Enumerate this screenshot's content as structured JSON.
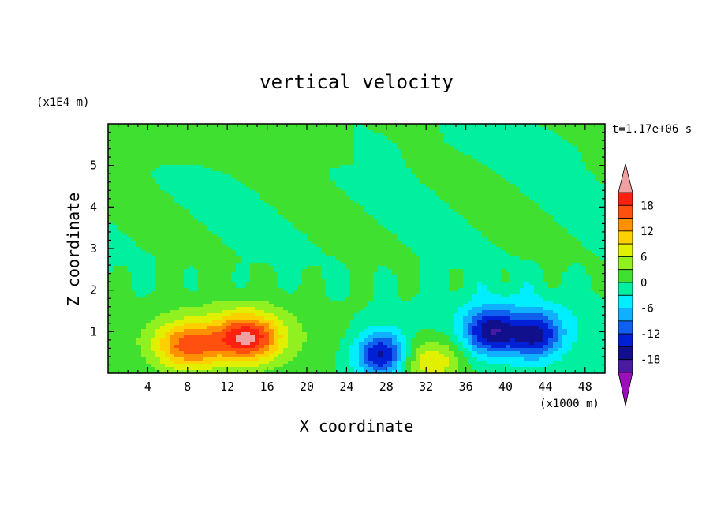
{
  "chart_data": {
    "type": "heatmap",
    "subtype": "filled-contour",
    "title": "vertical velocity",
    "xlabel": "X coordinate",
    "ylabel": "Z coordinate",
    "x_unit": "(x1000 m)",
    "y_unit": "(x1E4 m)",
    "time_label": "t=1.17e+06 s",
    "xlim": [
      0,
      50
    ],
    "ylim": [
      0,
      6
    ],
    "x_ticks": [
      4,
      8,
      12,
      16,
      20,
      24,
      28,
      32,
      36,
      40,
      44,
      48
    ],
    "y_ticks": [
      1,
      2,
      3,
      4,
      5
    ],
    "grid": false,
    "colorbar": {
      "placement": "right",
      "levels": [
        -21,
        -18,
        -15,
        -12,
        -9,
        -6,
        -3,
        0,
        3,
        6,
        9,
        12,
        15,
        18,
        21
      ],
      "tick_labels": [
        "18",
        "12",
        "6",
        "0",
        "-6",
        "-12",
        "-18"
      ],
      "tick_values": [
        18,
        12,
        6,
        0,
        -6,
        -12,
        -18
      ],
      "colors": [
        "#9b10b8",
        "#4a1aa0",
        "#10108c",
        "#0020d8",
        "#1060f0",
        "#10b0ff",
        "#00eeff",
        "#00f0a0",
        "#40e030",
        "#90f020",
        "#e0f000",
        "#ffd000",
        "#ff9000",
        "#ff5010",
        "#ff2010",
        "#f0a0a0"
      ],
      "extend": "both"
    },
    "features": [
      {
        "kind": "updraft",
        "x": 8,
        "z": 0.65,
        "peak": 13
      },
      {
        "kind": "updraft",
        "x": 14,
        "z": 0.85,
        "peak": 17
      },
      {
        "kind": "updraft",
        "x": 32.5,
        "z": 0.3,
        "peak": 9
      },
      {
        "kind": "downdraft",
        "x": 27.5,
        "z": 0.45,
        "peak": -16
      },
      {
        "kind": "downdraft",
        "x": 38.5,
        "z": 1.0,
        "peak": -14
      },
      {
        "kind": "downdraft",
        "x": 43,
        "z": 0.9,
        "peak": -13
      }
    ]
  }
}
